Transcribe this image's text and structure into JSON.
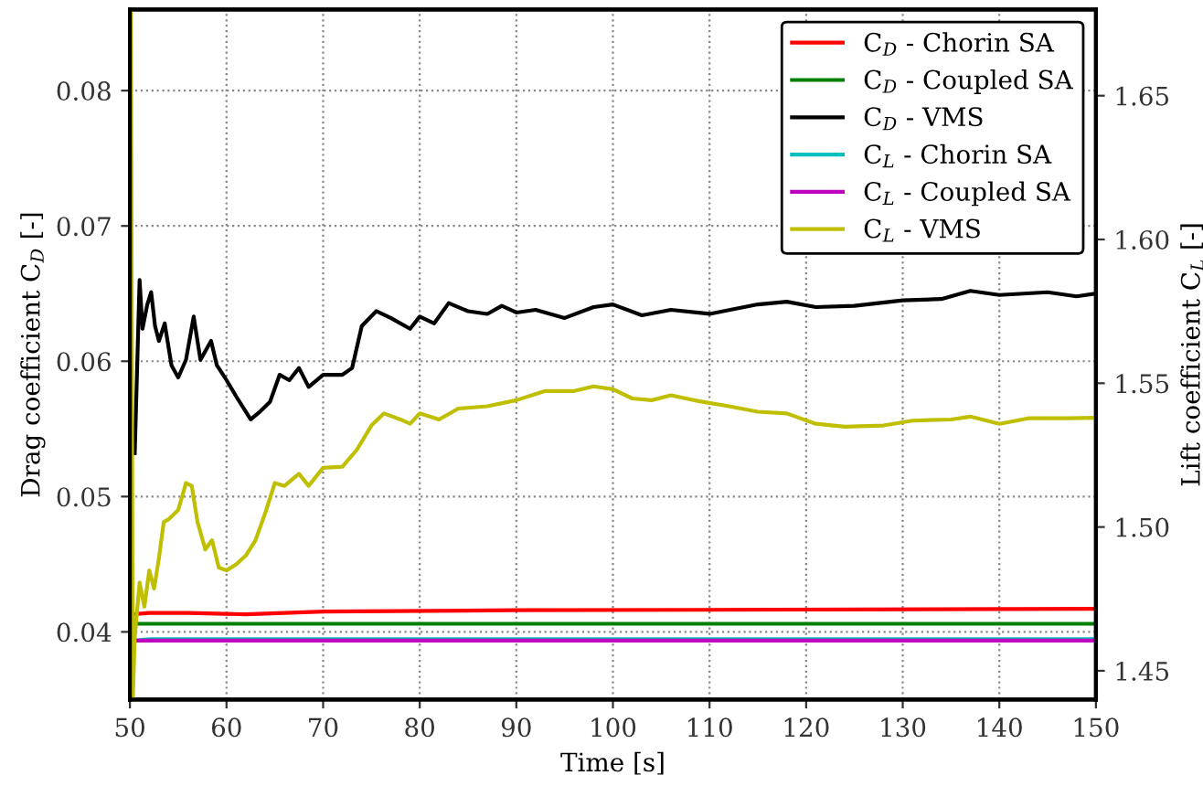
{
  "chart_data": {
    "type": "line",
    "xlabel": "Time [s]",
    "ylabel": "Drag coefficient C$_{D}$ [-]",
    "y2label": "Lift coefficient C$_{L}$ [-]",
    "xlim": [
      50,
      150
    ],
    "xticks": [
      50,
      60,
      70,
      80,
      90,
      100,
      110,
      120,
      130,
      140,
      150
    ],
    "ylim": [
      0.035,
      0.086
    ],
    "yticks": [
      0.04,
      0.05,
      0.06,
      0.07,
      0.08
    ],
    "y2lim": [
      1.44,
      1.68
    ],
    "y2ticks": [
      1.45,
      {
        "value": 1.5,
        "label": "1.50"
      },
      1.55,
      {
        "value": 1.6,
        "label": "1.60"
      },
      1.65
    ],
    "grid": true,
    "legend": "top right",
    "line_style": "solid",
    "marker": "none",
    "series": [
      {
        "name": "C$_{D}$ - Chorin SA",
        "color": "#ff0000",
        "x": [
          50.3,
          52,
          56,
          62,
          70,
          90,
          150
        ],
        "values": [
          0.0413,
          0.0414,
          0.0414,
          0.0413,
          0.0415,
          0.0416,
          0.0417
        ]
      },
      {
        "name": "C$_{D}$ - Coupled SA",
        "color": "#008000",
        "x": [
          50.3,
          150
        ],
        "values": [
          0.0406,
          0.0406
        ]
      },
      {
        "name": "C$_{D}$ - VMS",
        "color": "#000000",
        "x": [
          50.5,
          51,
          51.3,
          51.8,
          52.2,
          52.6,
          53,
          53.6,
          54.3,
          55,
          55.8,
          56.6,
          57.3,
          58.4,
          59,
          60,
          61,
          62.5,
          63.5,
          64.5,
          65.5,
          66.5,
          67.5,
          68.5,
          70,
          72,
          73,
          74,
          75.5,
          77,
          79,
          80,
          81.5,
          83,
          85,
          87,
          88.5,
          90,
          92,
          95,
          98,
          100,
          103,
          106,
          110,
          115,
          118,
          121,
          125,
          130,
          134,
          137,
          140,
          145,
          148,
          150
        ],
        "values": [
          0.0532,
          0.066,
          0.0624,
          0.0642,
          0.0651,
          0.0626,
          0.0615,
          0.0628,
          0.0597,
          0.0588,
          0.0601,
          0.0633,
          0.0601,
          0.0615,
          0.0597,
          0.0586,
          0.0574,
          0.0557,
          0.0563,
          0.057,
          0.059,
          0.0586,
          0.0595,
          0.0581,
          0.059,
          0.059,
          0.0595,
          0.0626,
          0.0637,
          0.0632,
          0.0624,
          0.0633,
          0.0628,
          0.0643,
          0.0637,
          0.0635,
          0.0641,
          0.0636,
          0.0638,
          0.0632,
          0.064,
          0.0642,
          0.0634,
          0.0638,
          0.0635,
          0.0642,
          0.0644,
          0.064,
          0.0641,
          0.0645,
          0.0646,
          0.0652,
          0.0649,
          0.0651,
          0.0648,
          0.065
        ]
      },
      {
        "name": "C$_{L}$ - Chorin SA",
        "color": "#00bfbf",
        "axis": "y2",
        "x": [
          50.6,
          52,
          150
        ],
        "values": [
          1.4605,
          1.461,
          1.461
        ]
      },
      {
        "name": "C$_{L}$ - Coupled SA",
        "color": "#bf00bf",
        "axis": "y2",
        "x": [
          50.3,
          150
        ],
        "values": [
          1.4605,
          1.4605
        ]
      },
      {
        "name": "C$_{L}$ - VMS",
        "color": "#bfbf00",
        "axis": "y2",
        "x": [
          50.1,
          50.3,
          50.5,
          51,
          51.5,
          52,
          52.5,
          53,
          53.5,
          54,
          55,
          55.8,
          56.4,
          57,
          57.8,
          58.5,
          59.2,
          60,
          61,
          62,
          63,
          64,
          65,
          66,
          67.5,
          68.5,
          70,
          72,
          73.5,
          75,
          76.3,
          78,
          79,
          80,
          82,
          84,
          87,
          90,
          93,
          96,
          98,
          100,
          102,
          104,
          106,
          109,
          112,
          115,
          118,
          121,
          124,
          128,
          131,
          135,
          137,
          140,
          143,
          147,
          150
        ],
        "values": [
          1.68,
          1.44,
          1.4618,
          1.4807,
          1.4723,
          1.4849,
          1.4786,
          1.4891,
          1.5017,
          1.5027,
          1.5059,
          1.5153,
          1.5143,
          1.5017,
          1.4922,
          1.4954,
          1.4859,
          1.4849,
          1.487,
          1.4901,
          1.4954,
          1.5048,
          1.5153,
          1.5143,
          1.5185,
          1.5143,
          1.5206,
          1.521,
          1.5269,
          1.5353,
          1.5395,
          1.5374,
          1.5359,
          1.5395,
          1.5374,
          1.5412,
          1.542,
          1.5441,
          1.5473,
          1.5473,
          1.5489,
          1.5479,
          1.5447,
          1.5441,
          1.5458,
          1.5437,
          1.542,
          1.5401,
          1.5395,
          1.5359,
          1.5349,
          1.5353,
          1.537,
          1.5374,
          1.5384,
          1.5359,
          1.5378,
          1.5378,
          1.538
        ]
      }
    ]
  }
}
